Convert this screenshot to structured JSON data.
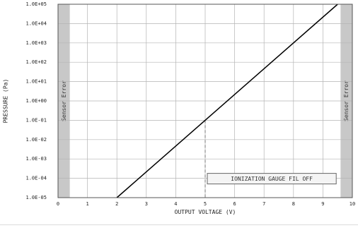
{
  "chart_data": {
    "type": "line",
    "title": "",
    "xlabel": "OUTPUT VOLTAGE (V)",
    "ylabel": "PRESSURE (Pa)",
    "xlim": [
      0,
      10
    ],
    "ylim_exponent": [
      -5,
      5
    ],
    "y_scale": "log",
    "x_ticks": [
      "0",
      "1",
      "2",
      "3",
      "4",
      "5",
      "6",
      "7",
      "8",
      "9",
      "10"
    ],
    "y_ticks": [
      "1.0E-05",
      "1.0E-04",
      "1.0E-03",
      "1.0E-02",
      "1.0E-01",
      "1.0E+00",
      "1.0E+01",
      "1.0E+02",
      "1.0E+03",
      "1.0E+04",
      "1.0E+05"
    ],
    "grid": true,
    "series": [
      {
        "color": "#000000",
        "x": [
          2.0,
          9.5
        ],
        "y": [
          1e-05,
          100000
        ]
      }
    ],
    "sensor_error_zones": [
      {
        "label": "Sensor Error",
        "x_from": 0,
        "x_to": 0.4
      },
      {
        "label": "Sensor Error",
        "x_from": 9.6,
        "x_to": 10
      }
    ],
    "annotations": [
      {
        "label": "IONIZATION GAUGE FIL OFF",
        "x_from": 5,
        "x_to": 9.5,
        "y": 0.0001
      }
    ],
    "reference_line": {
      "x": 5,
      "y": 0.1,
      "style": "dashed"
    },
    "colors": {
      "zone": "#c8c8c8",
      "grid": "#b4b4b4",
      "frame": "#555555",
      "line": "#000000"
    }
  }
}
